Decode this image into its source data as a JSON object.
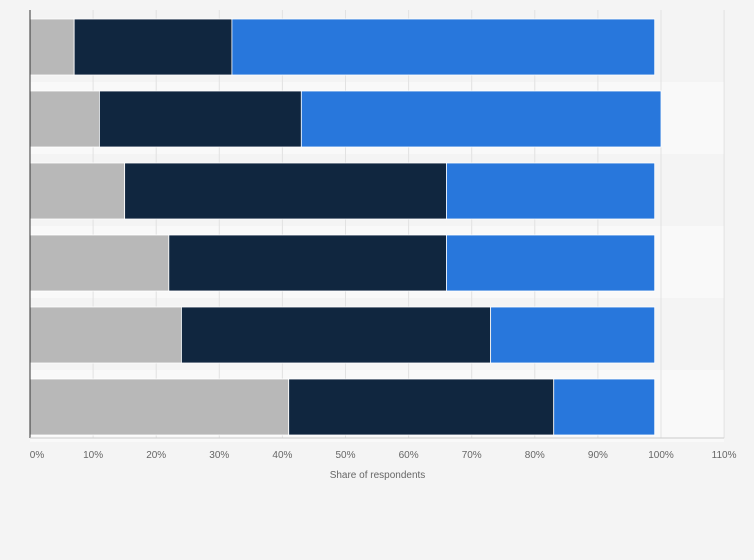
{
  "chart_data": {
    "type": "bar",
    "orientation": "horizontal",
    "stacked": true,
    "title": "",
    "xlabel": "Share of respondents",
    "ylabel": "",
    "xlim": [
      0,
      110
    ],
    "x_ticks": [
      0,
      10,
      20,
      30,
      40,
      50,
      60,
      70,
      80,
      90,
      100,
      110
    ],
    "x_tick_labels": [
      "0%",
      "10%",
      "20%",
      "30%",
      "40%",
      "50%",
      "60%",
      "70%",
      "80%",
      "90%",
      "100%",
      "110%"
    ],
    "categories": [
      "",
      "",
      "",
      "",
      "",
      ""
    ],
    "series": [
      {
        "name": "",
        "color": "#b8b8b8",
        "values": [
          7,
          11,
          15,
          22,
          24,
          41
        ]
      },
      {
        "name": "",
        "color": "#10263f",
        "values": [
          25,
          32,
          51,
          44,
          49,
          42
        ]
      },
      {
        "name": "",
        "color": "#2877dc",
        "values": [
          67,
          57,
          33,
          33,
          26,
          16
        ]
      }
    ],
    "grid": true,
    "legend": "none"
  },
  "colors": {
    "background": "#f4f4f4",
    "row_band": "#f9f9f9",
    "axis": "#333333",
    "grid": "#e2e2e2"
  }
}
